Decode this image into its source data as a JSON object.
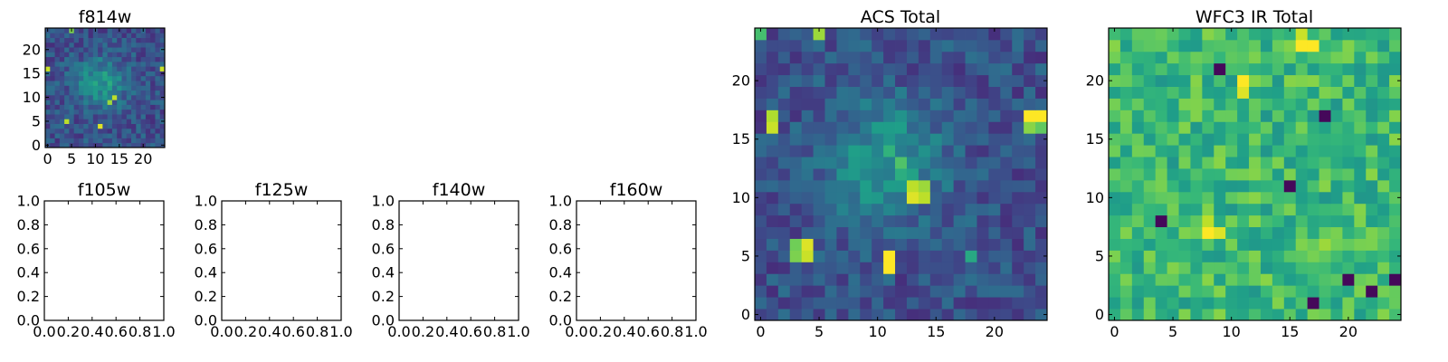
{
  "chart_data": [
    {
      "type": "heatmap",
      "title": "f814w",
      "grid_size": 25,
      "seed": 814,
      "colormap": "viridis",
      "xlim": [
        -0.5,
        24.5
      ],
      "ylim": [
        -0.5,
        24.5
      ],
      "xticks": [
        0,
        5,
        10,
        15,
        20
      ],
      "yticks": [
        0,
        5,
        10,
        15,
        20
      ],
      "xticklabels": [
        "0",
        "5",
        "10",
        "15",
        "20"
      ],
      "yticklabels": [
        "0",
        "5",
        "10",
        "15",
        "20"
      ],
      "peaks": [
        {
          "x": 0,
          "y": 16,
          "v": 0.92
        },
        {
          "x": 24,
          "y": 16,
          "v": 0.92
        },
        {
          "x": 4,
          "y": 5,
          "v": 0.9
        },
        {
          "x": 11,
          "y": 4,
          "v": 0.95
        },
        {
          "x": 14,
          "y": 10,
          "v": 0.9
        },
        {
          "x": 13,
          "y": 9,
          "v": 0.85
        },
        {
          "x": 5,
          "y": 24,
          "v": 0.8
        }
      ],
      "blob": {
        "x": 11,
        "y": 13,
        "radius": 3.5,
        "amp": 0.3
      }
    },
    {
      "type": "empty",
      "title": "f105w",
      "xlim": [
        0.0,
        1.0
      ],
      "ylim": [
        0.0,
        1.0
      ],
      "xticklabels": [
        "0.0",
        "0.2",
        "0.4",
        "0.6",
        "0.8",
        "1.0"
      ],
      "yticklabels": [
        "0.0",
        "0.2",
        "0.4",
        "0.6",
        "0.8",
        "1.0"
      ]
    },
    {
      "type": "empty",
      "title": "f125w",
      "xlim": [
        0.0,
        1.0
      ],
      "ylim": [
        0.0,
        1.0
      ],
      "xticklabels": [
        "0.0",
        "0.2",
        "0.4",
        "0.6",
        "0.8",
        "1.0"
      ],
      "yticklabels": [
        "0.0",
        "0.2",
        "0.4",
        "0.6",
        "0.8",
        "1.0"
      ]
    },
    {
      "type": "empty",
      "title": "f140w",
      "xlim": [
        0.0,
        1.0
      ],
      "ylim": [
        0.0,
        1.0
      ],
      "xticklabels": [
        "0.0",
        "0.2",
        "0.4",
        "0.6",
        "0.8",
        "1.0"
      ],
      "yticklabels": [
        "0.0",
        "0.2",
        "0.4",
        "0.6",
        "0.8",
        "1.0"
      ]
    },
    {
      "type": "empty",
      "title": "f160w",
      "xlim": [
        0.0,
        1.0
      ],
      "ylim": [
        0.0,
        1.0
      ],
      "xticklabels": [
        "0.0",
        "0.2",
        "0.4",
        "0.6",
        "0.8",
        "1.0"
      ],
      "yticklabels": [
        "0.0",
        "0.2",
        "0.4",
        "0.6",
        "0.8",
        "1.0"
      ]
    },
    {
      "type": "heatmap",
      "title": "ACS Total",
      "grid_size": 25,
      "seed": 101,
      "colormap": "viridis",
      "xlim": [
        -0.5,
        24.5
      ],
      "ylim": [
        -0.5,
        24.5
      ],
      "xticks": [
        0,
        5,
        10,
        15,
        20
      ],
      "yticks": [
        0,
        5,
        10,
        15,
        20
      ],
      "xticklabels": [
        "0",
        "5",
        "10",
        "15",
        "20"
      ],
      "yticklabels": [
        "0",
        "5",
        "10",
        "15",
        "20"
      ],
      "peaks": [
        {
          "x": 1,
          "y": 16,
          "v": 0.92
        },
        {
          "x": 1,
          "y": 17,
          "v": 0.88
        },
        {
          "x": 23,
          "y": 17,
          "v": 1.0
        },
        {
          "x": 24,
          "y": 17,
          "v": 1.0
        },
        {
          "x": 23,
          "y": 16,
          "v": 0.82
        },
        {
          "x": 24,
          "y": 16,
          "v": 0.75
        },
        {
          "x": 4,
          "y": 6,
          "v": 0.95
        },
        {
          "x": 4,
          "y": 5,
          "v": 0.92
        },
        {
          "x": 3,
          "y": 6,
          "v": 0.78
        },
        {
          "x": 3,
          "y": 5,
          "v": 0.8
        },
        {
          "x": 11,
          "y": 5,
          "v": 1.0
        },
        {
          "x": 11,
          "y": 4,
          "v": 1.0
        },
        {
          "x": 13,
          "y": 11,
          "v": 0.9
        },
        {
          "x": 14,
          "y": 11,
          "v": 0.85
        },
        {
          "x": 13,
          "y": 10,
          "v": 0.95
        },
        {
          "x": 14,
          "y": 10,
          "v": 0.9
        },
        {
          "x": 12,
          "y": 13,
          "v": 0.72
        },
        {
          "x": 12,
          "y": 12,
          "v": 0.62
        },
        {
          "x": 5,
          "y": 24,
          "v": 0.85
        },
        {
          "x": 0,
          "y": 24,
          "v": 0.7
        },
        {
          "x": 18,
          "y": 5,
          "v": 0.6
        }
      ],
      "blob": {
        "x": 11,
        "y": 13,
        "radius": 3.5,
        "amp": 0.3
      }
    },
    {
      "type": "heatmap",
      "title": "WFC3 IR Total",
      "grid_size": 25,
      "seed": 303,
      "colormap": "viridis",
      "base": 0.52,
      "noise": 0.3,
      "xlim": [
        -0.5,
        24.5
      ],
      "ylim": [
        -0.5,
        24.5
      ],
      "xticks": [
        0,
        5,
        10,
        15,
        20
      ],
      "yticks": [
        0,
        5,
        10,
        15,
        20
      ],
      "xticklabels": [
        "0",
        "5",
        "10",
        "15",
        "20"
      ],
      "yticklabels": [
        "0",
        "5",
        "10",
        "15",
        "20"
      ],
      "peaks": [
        {
          "x": 16,
          "y": 23,
          "v": 1.0
        },
        {
          "x": 17,
          "y": 23,
          "v": 1.0
        },
        {
          "x": 16,
          "y": 24,
          "v": 0.92
        },
        {
          "x": 11,
          "y": 20,
          "v": 1.0
        },
        {
          "x": 11,
          "y": 19,
          "v": 0.95
        },
        {
          "x": 8,
          "y": 7,
          "v": 1.0
        },
        {
          "x": 9,
          "y": 7,
          "v": 0.95
        },
        {
          "x": 8,
          "y": 8,
          "v": 0.9
        },
        {
          "x": 7,
          "y": 7,
          "v": 0.78
        },
        {
          "x": 18,
          "y": 6,
          "v": 0.85
        },
        {
          "x": 12,
          "y": 13,
          "v": 0.8
        }
      ],
      "lows": [
        {
          "x": 20,
          "y": 3
        },
        {
          "x": 17,
          "y": 1
        },
        {
          "x": 4,
          "y": 8
        },
        {
          "x": 22,
          "y": 2
        },
        {
          "x": 9,
          "y": 21
        },
        {
          "x": 15,
          "y": 11
        },
        {
          "x": 24,
          "y": 3
        },
        {
          "x": 18,
          "y": 17
        }
      ]
    }
  ],
  "colors": {
    "viridis": [
      "#440154",
      "#482878",
      "#3e4989",
      "#31688e",
      "#26828e",
      "#1f9e89",
      "#35b779",
      "#6ece58",
      "#b5de2b",
      "#fde725"
    ]
  }
}
